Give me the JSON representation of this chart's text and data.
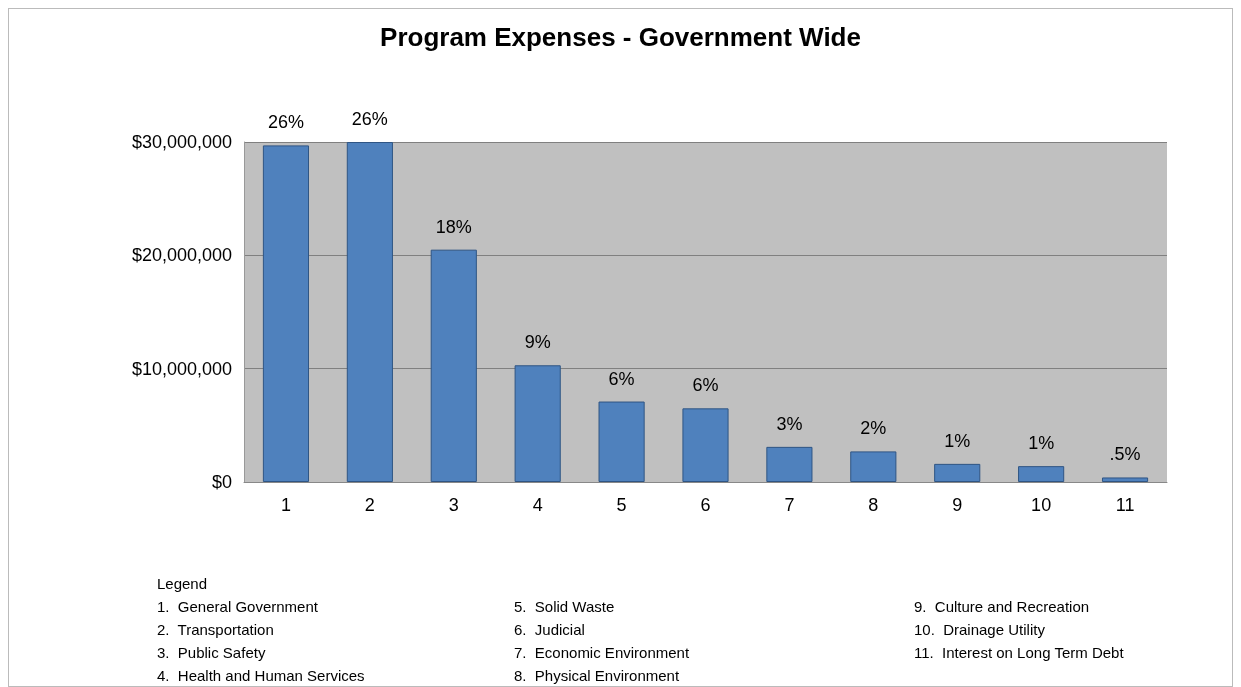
{
  "chart_data": {
    "type": "bar",
    "title": "Program Expenses - Government Wide",
    "categories": [
      "1",
      "2",
      "3",
      "4",
      "5",
      "6",
      "7",
      "8",
      "9",
      "10",
      "11"
    ],
    "values": [
      29700000,
      30000000,
      20500000,
      10300000,
      7100000,
      6500000,
      3100000,
      2700000,
      1600000,
      1400000,
      400000
    ],
    "color": "#4f81bd",
    "ylim": [
      0,
      30000000
    ],
    "yticks": [
      {
        "value": 0,
        "label": "$0"
      },
      {
        "value": 10000000,
        "label": "$10,000,000"
      },
      {
        "value": 20000000,
        "label": "$20,000,000"
      },
      {
        "value": 30000000,
        "label": "$30,000,000"
      }
    ],
    "grid": "y",
    "legend_title": "Legend",
    "annotations": [
      {
        "text": "26%",
        "x": "1",
        "y": 29700000
      },
      {
        "text": "26%",
        "x": "2",
        "y": 30000000
      },
      {
        "text": "18%",
        "x": "3",
        "y": 20500000
      },
      {
        "text": "9%",
        "x": "4",
        "y": 10300000
      },
      {
        "text": "6%",
        "x": "5",
        "y": 7100000
      },
      {
        "text": "6%",
        "x": "6",
        "y": 6500000
      },
      {
        "text": "3%",
        "x": "7",
        "y": 3100000
      },
      {
        "text": "2%",
        "x": "8",
        "y": 2700000
      },
      {
        "text": "1%",
        "x": "9",
        "y": 1600000
      },
      {
        "text": "1%",
        "x": "10",
        "y": 1400000
      },
      {
        "text": ".5%",
        "x": "11",
        "y": 400000
      },
      "1.  General Government",
      "2.  Transportation",
      "3.  Public Safety",
      "4.  Health and Human Services",
      "5.  Solid Waste",
      "6.  Judicial",
      "7.  Economic Environment",
      "8.  Physical Environment",
      "9.  Culture and Recreation",
      "10.  Drainage Utility",
      "11.  Interest on Long Term Debt"
    ]
  }
}
